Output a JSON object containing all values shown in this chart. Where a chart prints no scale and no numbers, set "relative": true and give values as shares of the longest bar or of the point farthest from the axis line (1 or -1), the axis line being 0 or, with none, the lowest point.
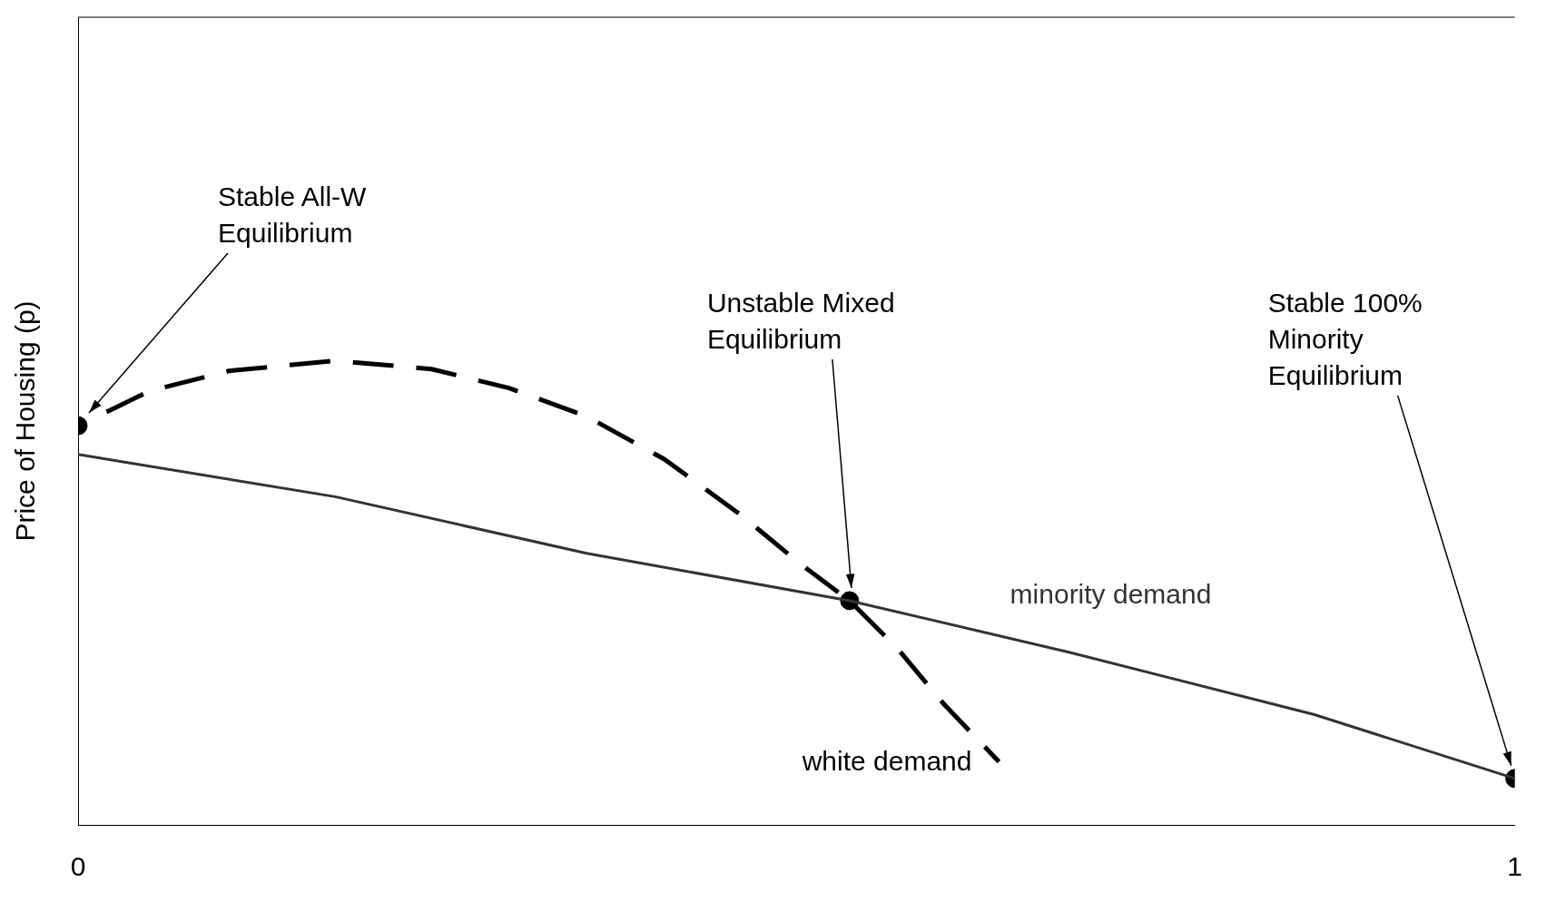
{
  "chart_data": {
    "type": "line",
    "relative": true,
    "ylabel": "Price of Housing (p)",
    "xlim": [
      0,
      1
    ],
    "xticks": [
      0,
      1
    ],
    "legend": false,
    "grid": false,
    "series": [
      {
        "name": "white demand",
        "color": "#000000",
        "line_style": "dashed",
        "marker": "none",
        "x": [
          0,
          0.05,
          0.105,
          0.179,
          0.246,
          0.3,
          0.354,
          0.408,
          0.462,
          0.502,
          0.537,
          0.57,
          0.603,
          0.641
        ],
        "values": [
          0.86,
          0.935,
          0.978,
          1,
          0.982,
          0.941,
          0.88,
          0.788,
          0.666,
          0.564,
          0.483,
          0.381,
          0.259,
          0.136
        ]
      },
      {
        "name": "minority demand",
        "color": "#333333",
        "line_style": "solid",
        "marker": "none",
        "x": [
          0,
          0.179,
          0.354,
          0.537,
          0.691,
          0.86,
          1
        ],
        "values": [
          0.798,
          0.707,
          0.585,
          0.483,
          0.371,
          0.238,
          0.1
        ]
      },
      {
        "type": "scatter",
        "color": "#000000",
        "marker": "circle",
        "x": [
          0,
          0.537,
          1
        ],
        "values": [
          0.86,
          0.483,
          0.1
        ]
      }
    ],
    "annotations": [
      "Stable All-W Equilibrium",
      "Unstable Mixed Equilibrium",
      "Stable 100% Minority Equilibrium"
    ]
  }
}
